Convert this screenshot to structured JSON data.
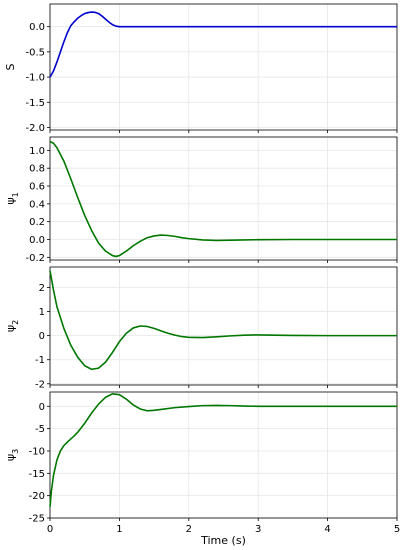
{
  "chart_data": [
    {
      "type": "line",
      "ylabel": "S",
      "ylabel_sub": "",
      "ylim": [
        -2.05,
        0.45
      ],
      "yticks": [
        -2.0,
        -1.5,
        -1.0,
        -0.5,
        0.0
      ],
      "ytick_labels": [
        "-2.0",
        "-1.5",
        "-1.0",
        "-0.5",
        "0.0"
      ],
      "xlim": [
        0,
        5
      ],
      "grid": true,
      "series": [
        {
          "color": "#0000cc",
          "x": [
            0,
            0.05,
            0.1,
            0.15,
            0.2,
            0.25,
            0.3,
            0.35,
            0.4,
            0.45,
            0.5,
            0.55,
            0.6,
            0.65,
            0.7,
            0.75,
            0.8,
            0.85,
            0.9,
            0.95,
            1.0,
            1.05,
            1.2,
            1.5,
            2.0,
            2.5,
            3.0,
            3.5,
            4.0,
            4.5,
            5.0
          ],
          "y": [
            -1.0,
            -0.88,
            -0.7,
            -0.5,
            -0.3,
            -0.12,
            0.02,
            0.1,
            0.17,
            0.22,
            0.26,
            0.28,
            0.29,
            0.285,
            0.26,
            0.21,
            0.15,
            0.09,
            0.04,
            0.01,
            0.0,
            0.0,
            0.0,
            0.0,
            0.0,
            0.0,
            0.0,
            0.0,
            0.0,
            0.0,
            0.0
          ]
        }
      ]
    },
    {
      "type": "line",
      "ylabel": "ψ",
      "ylabel_sub": "1",
      "ylim": [
        -0.23,
        1.15
      ],
      "yticks": [
        -0.2,
        0.0,
        0.2,
        0.4,
        0.6,
        0.8,
        1.0
      ],
      "ytick_labels": [
        "-0.2",
        "0.0",
        "0.2",
        "0.4",
        "0.6",
        "0.8",
        "1.0"
      ],
      "xlim": [
        0,
        5
      ],
      "grid": true,
      "series": [
        {
          "color": "#007700",
          "x": [
            0,
            0.05,
            0.1,
            0.2,
            0.3,
            0.4,
            0.5,
            0.6,
            0.7,
            0.8,
            0.9,
            0.95,
            1.0,
            1.1,
            1.2,
            1.3,
            1.4,
            1.5,
            1.6,
            1.7,
            1.8,
            1.9,
            2.0,
            2.2,
            2.4,
            2.6,
            2.8,
            3.0,
            3.5,
            4.0,
            4.5,
            5.0
          ],
          "y": [
            1.1,
            1.08,
            1.03,
            0.88,
            0.68,
            0.47,
            0.27,
            0.1,
            -0.04,
            -0.13,
            -0.18,
            -0.19,
            -0.18,
            -0.13,
            -0.07,
            -0.02,
            0.02,
            0.04,
            0.05,
            0.045,
            0.035,
            0.02,
            0.01,
            -0.005,
            -0.01,
            -0.008,
            -0.005,
            -0.002,
            0.0,
            0.0,
            0.0,
            0.0
          ]
        }
      ]
    },
    {
      "type": "line",
      "ylabel": "ψ",
      "ylabel_sub": "2",
      "ylim": [
        -2.05,
        2.85
      ],
      "yticks": [
        -2,
        -1,
        0,
        1,
        2
      ],
      "ytick_labels": [
        "-2",
        "-1",
        "0",
        "1",
        "2"
      ],
      "xlim": [
        0,
        5
      ],
      "grid": true,
      "series": [
        {
          "color": "#007700",
          "x": [
            0,
            0.05,
            0.1,
            0.2,
            0.3,
            0.4,
            0.5,
            0.6,
            0.7,
            0.8,
            0.9,
            1.0,
            1.1,
            1.2,
            1.3,
            1.4,
            1.5,
            1.6,
            1.7,
            1.8,
            1.9,
            2.0,
            2.2,
            2.4,
            2.6,
            2.8,
            3.0,
            3.5,
            4.0,
            4.5,
            5.0
          ],
          "y": [
            2.7,
            1.9,
            1.2,
            0.3,
            -0.4,
            -0.9,
            -1.25,
            -1.4,
            -1.35,
            -1.1,
            -0.7,
            -0.25,
            0.1,
            0.32,
            0.4,
            0.38,
            0.3,
            0.2,
            0.1,
            0.02,
            -0.04,
            -0.07,
            -0.08,
            -0.05,
            -0.01,
            0.02,
            0.03,
            0.01,
            0.0,
            0.0,
            0.0
          ]
        }
      ]
    },
    {
      "type": "line",
      "ylabel": "ψ",
      "ylabel_sub": "3",
      "ylim": [
        -25,
        3.2
      ],
      "yticks": [
        -25,
        -20,
        -15,
        -10,
        -5,
        0
      ],
      "ytick_labels": [
        "-25",
        "-20",
        "-15",
        "-10",
        "-5",
        "0"
      ],
      "xlim": [
        0,
        5
      ],
      "xticks": [
        0,
        1,
        2,
        3,
        4,
        5
      ],
      "xtick_labels": [
        "0",
        "1",
        "2",
        "3",
        "4",
        "5"
      ],
      "xlabel": "Time (s)",
      "grid": true,
      "series": [
        {
          "color": "#007700",
          "x": [
            0,
            0.02,
            0.05,
            0.1,
            0.15,
            0.2,
            0.25,
            0.3,
            0.35,
            0.4,
            0.45,
            0.5,
            0.6,
            0.7,
            0.8,
            0.9,
            1.0,
            1.1,
            1.2,
            1.3,
            1.4,
            1.5,
            1.6,
            1.8,
            2.0,
            2.2,
            2.4,
            2.6,
            2.8,
            3.0,
            3.5,
            4.0,
            4.5,
            5.0
          ],
          "y": [
            -22.5,
            -19.0,
            -15.5,
            -12.0,
            -10.0,
            -8.8,
            -8.0,
            -7.3,
            -6.6,
            -5.8,
            -4.8,
            -3.8,
            -1.5,
            0.5,
            2.0,
            2.8,
            2.6,
            1.6,
            0.3,
            -0.6,
            -1.0,
            -0.9,
            -0.7,
            -0.3,
            -0.05,
            0.15,
            0.2,
            0.15,
            0.05,
            0.0,
            0.0,
            0.0,
            0.0,
            0.0
          ]
        }
      ]
    }
  ]
}
